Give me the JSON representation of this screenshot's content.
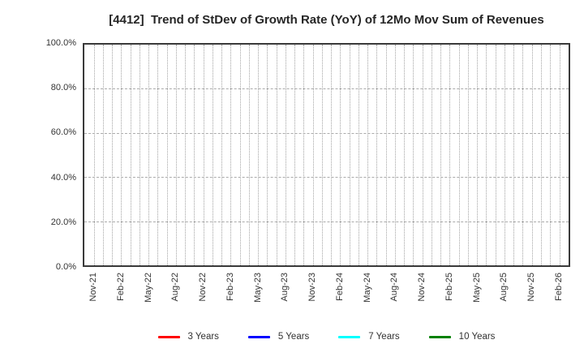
{
  "figure": {
    "title": "[4412]  Trend of StDev of Growth Rate (YoY) of 12Mo Mov Sum of Revenues"
  },
  "chart_data": {
    "type": "line",
    "title": "[4412]  Trend of StDev of Growth Rate (YoY) of 12Mo Mov Sum of Revenues",
    "xlabel": "",
    "ylabel": "",
    "x_tick_labels": [
      "Nov-21",
      "Feb-22",
      "May-22",
      "Aug-22",
      "Nov-22",
      "Feb-23",
      "May-23",
      "Aug-23",
      "Nov-23",
      "Feb-24",
      "May-24",
      "Aug-24",
      "Nov-24",
      "Feb-25",
      "May-25",
      "Aug-25",
      "Nov-25",
      "Feb-26"
    ],
    "x_gridlines_per_label_interval": 3,
    "y_tick_labels": [
      "0.0%",
      "20.0%",
      "40.0%",
      "60.0%",
      "80.0%",
      "100.0%"
    ],
    "ylim": [
      0,
      100
    ],
    "grid": true,
    "grid_style": {
      "vertical": "dotted monthly",
      "horizontal": "dashed every 20%"
    },
    "legend_position": "bottom-center",
    "series": [
      {
        "name": "3 Years",
        "color": "#ff0000",
        "values": []
      },
      {
        "name": "5 Years",
        "color": "#0000ff",
        "values": []
      },
      {
        "name": "7 Years",
        "color": "#00ffff",
        "values": []
      },
      {
        "name": "10 Years",
        "color": "#008000",
        "values": []
      }
    ]
  }
}
